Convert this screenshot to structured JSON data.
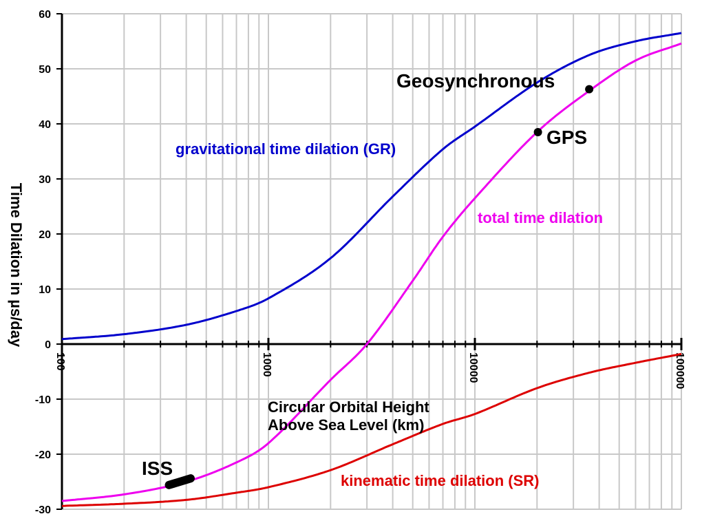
{
  "chart_data": {
    "type": "line",
    "title": "",
    "xlabel": "Circular Orbital Height\nAbove Sea Level (km)",
    "xlabel_lines": [
      "Circular Orbital Height",
      "Above Sea Level (km)"
    ],
    "ylabel": "Time Dilation in µs/day",
    "x_scale": "log",
    "xlim": [
      100,
      100000
    ],
    "ylim": [
      -30,
      60
    ],
    "x_ticks": [
      "100",
      "1000",
      "10000",
      "100000"
    ],
    "y_ticks": [
      "-30",
      "-20",
      "-10",
      "0",
      "10",
      "20",
      "30",
      "40",
      "50",
      "60"
    ],
    "grid": true,
    "series": [
      {
        "name": "gravitational time dilation (GR)",
        "color": "#0000cc",
        "x": [
          100,
          200,
          400,
          700,
          1000,
          2000,
          4000,
          7000,
          10000,
          20000,
          35786,
          60000,
          100000
        ],
        "y": [
          0.9,
          1.8,
          3.5,
          6.0,
          8.3,
          15.6,
          26.8,
          35.4,
          39.5,
          47.5,
          52.5,
          55.0,
          56.5
        ]
      },
      {
        "name": "total time dilation",
        "color": "#ee00ee",
        "x": [
          100,
          200,
          400,
          700,
          1000,
          2000,
          3000,
          5000,
          7000,
          10000,
          20000,
          35786,
          60000,
          100000
        ],
        "y": [
          -28.5,
          -27.3,
          -25.0,
          -21.5,
          -18.0,
          -6.5,
          0.0,
          11.5,
          19.5,
          26.5,
          38.5,
          46.0,
          51.5,
          54.6
        ]
      },
      {
        "name": "kinematic time dilation (SR)",
        "color": "#dd0000",
        "x": [
          100,
          200,
          400,
          700,
          1000,
          2000,
          4000,
          7000,
          10000,
          20000,
          35786,
          60000,
          100000
        ],
        "y": [
          -29.4,
          -29.0,
          -28.3,
          -27.0,
          -26.0,
          -22.9,
          -18.2,
          -14.5,
          -12.7,
          -8.0,
          -5.2,
          -3.4,
          -1.8
        ]
      }
    ],
    "points": [
      {
        "label": "Geosynchronous",
        "x": 35786,
        "y": 46.3
      },
      {
        "label": "GPS",
        "x": 20200,
        "y": 38.5
      }
    ],
    "segments": [
      {
        "label": "ISS",
        "x1": 330,
        "y1": -25.6,
        "x2": 420,
        "y2": -24.4
      }
    ],
    "labels": {
      "gr": "gravitational time dilation (GR)",
      "total": "total time dilation",
      "sr": "kinematic time dilation (SR)",
      "geo": "Geosynchronous",
      "gps": "GPS",
      "iss": "ISS"
    }
  }
}
